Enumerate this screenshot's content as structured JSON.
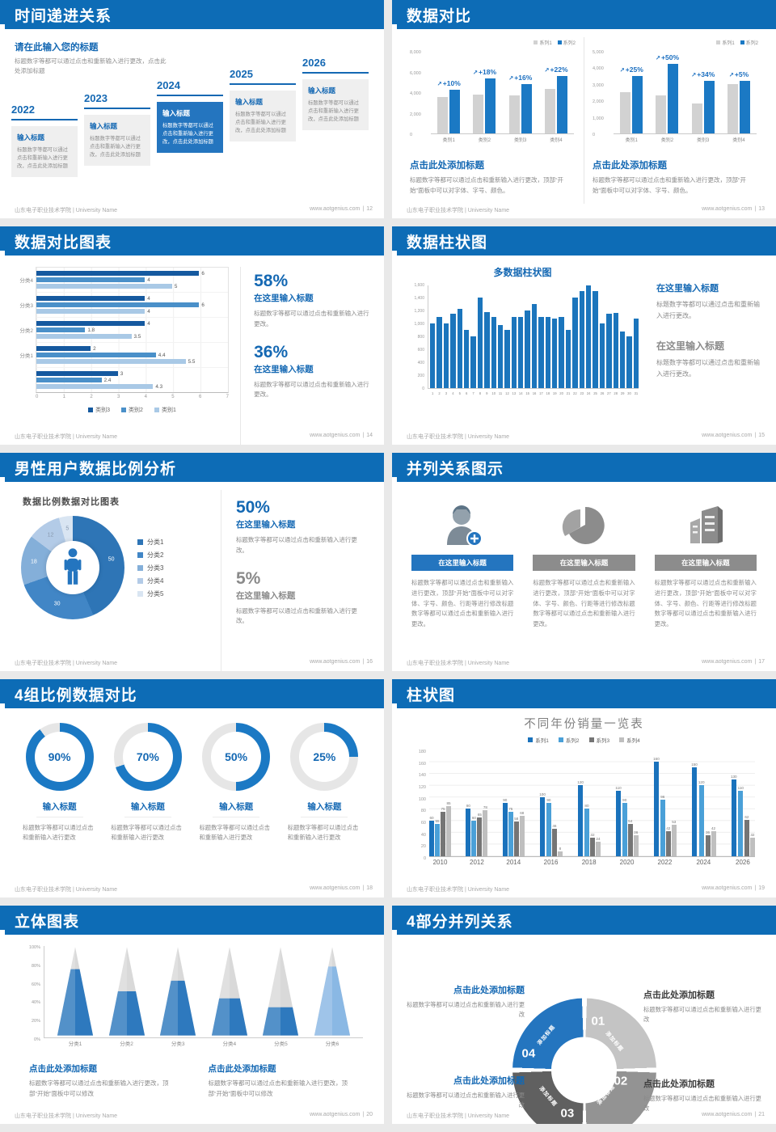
{
  "footer": {
    "left": "山东电子职业技术学院 | University Name",
    "site": "www.aotgenius.com"
  },
  "accent_color": "#1468b3",
  "header_color": "#0d6cb6",
  "slides": [
    {
      "page": "12",
      "title": "时间递进关系",
      "intro_title": "请在此输入您的标题",
      "intro_body": "标题数字等都可以通过点击和重新输入进行更改，点击此处添加标题",
      "items": [
        {
          "year": "2022",
          "heading": "输入标题",
          "body": "标题数字等都可以通过点击和重新输入进行更改，点击此处添加标题"
        },
        {
          "year": "2023",
          "heading": "输入标题",
          "body": "标题数字等都可以通过点击和重新输入进行更改，点击此处添加标题"
        },
        {
          "year": "2024",
          "heading": "输入标题",
          "body": "标题数字等都可以通过点击和重新输入进行更改，点击此处添加标题"
        },
        {
          "year": "2025",
          "heading": "输入标题",
          "body": "标题数字等都可以通过点击和重新输入进行更改，点击此处添加标题"
        },
        {
          "year": "2026",
          "heading": "输入标题",
          "body": "标题数字等都可以通过点击和重新输入进行更改，点击此处添加标题"
        }
      ]
    },
    {
      "page": "13",
      "title": "数据对比",
      "caption_title": "点击此处添加标题",
      "caption_body": "标题数字等都可以通过点击和重新输入进行更改，顶部“开始”面板中可以对字体、字号、颜色。"
    },
    {
      "page": "14",
      "title": "数据对比图表",
      "stats": [
        {
          "pct": "58%",
          "heading": "在这里输入标题",
          "body": "标题数字等都可以通过点击和重新输入进行更改。"
        },
        {
          "pct": "36%",
          "heading": "在这里输入标题",
          "body": "标题数字等都可以通过点击和重新输入进行更改。"
        }
      ]
    },
    {
      "page": "15",
      "title": "数据柱状图",
      "blocks": [
        {
          "heading": "在这里输入标题",
          "body": "标题数字等都可以通过点击和重新输入进行更改。"
        },
        {
          "heading": "在这里输入标题",
          "body": "标题数字等都可以通过点击和重新输入进行更改。"
        }
      ]
    },
    {
      "page": "16",
      "title": "男性用户数据比例分析",
      "stats": [
        {
          "pct": "50%",
          "heading": "在这里输入标题",
          "body": "标题数字等都可以通过点击和重新输入进行更改。"
        },
        {
          "pct": "5%",
          "heading": "在这里输入标题",
          "body": "标题数字等都可以通过点击和重新输入进行更改。"
        }
      ]
    },
    {
      "page": "17",
      "title": "并列关系图示",
      "cards": [
        {
          "icon": "user-plus-icon",
          "heading": "在这里输入标题"
        },
        {
          "icon": "pie-3d-icon",
          "heading": "在这里输入标题"
        },
        {
          "icon": "building-icon",
          "heading": "在这里输入标题"
        }
      ],
      "card_body": "标题数字等都可以通过点击和重新输入进行更改，顶部“开始”面板中可以对字体、字号、颜色、行距等进行修改标题数字等都可以通过点击和重新输入进行更改。"
    },
    {
      "page": "18",
      "title": "4组比例数据对比",
      "items": [
        {
          "heading": "输入标题",
          "body": "标题数字等都可以通过点击和重新输入进行更改"
        },
        {
          "heading": "输入标题",
          "body": "标题数字等都可以通过点击和重新输入进行更改"
        },
        {
          "heading": "输入标题",
          "body": "标题数字等都可以通过点击和重新输入进行更改"
        },
        {
          "heading": "输入标题",
          "body": "标题数字等都可以通过点击和重新输入进行更改"
        }
      ]
    },
    {
      "page": "19",
      "title": "柱状图"
    },
    {
      "page": "20",
      "title": "立体图表",
      "blocks": [
        {
          "heading": "点击此处添加标题",
          "body": "标题数字等都可以通过点击和重新输入进行更改，顶部“开始”面板中可以修改"
        },
        {
          "heading": "点击此处添加标题",
          "body": "标题数字等都可以通过点击和重新输入进行更改，顶部“开始”面板中可以修改"
        }
      ]
    },
    {
      "page": "21",
      "title": "4部分并列关系",
      "blocks": [
        {
          "heading": "点击此处添加标题",
          "body": "标题数字等都可以通过点击和重新输入进行更改"
        },
        {
          "heading": "点击此处添加标题",
          "body": "标题数字等都可以通过点击和重新输入进行更改"
        },
        {
          "heading": "点击此处添加标题",
          "body": "标题数字等都可以通过点击和重新输入进行更改"
        },
        {
          "heading": "点击此处添加标题",
          "body": "标题数字等都可以通过点击和重新输入进行更改"
        }
      ]
    }
  ],
  "chart_data": [
    {
      "type": "bar",
      "categories": [
        "类别1",
        "类别2",
        "类别3",
        "类别4"
      ],
      "series": [
        {
          "name": "系列1",
          "values": [
            3500,
            3800,
            3700,
            4300
          ]
        },
        {
          "name": "系列2",
          "values": [
            4200,
            5300,
            4800,
            5600
          ]
        }
      ],
      "colors": [
        "#d2d2d2",
        "#1b79c4"
      ],
      "annotations": [
        "+10%",
        "+18%",
        "+16%",
        "+22%"
      ],
      "ylim": [
        0,
        8000
      ],
      "ytick_step": 2000,
      "legend_position": "top-right"
    },
    {
      "type": "bar",
      "categories": [
        "类别1",
        "类别2",
        "类别3",
        "类别4"
      ],
      "series": [
        {
          "name": "系列1",
          "values": [
            2500,
            2300,
            1800,
            3000
          ]
        },
        {
          "name": "系列2",
          "values": [
            3500,
            4200,
            3200,
            3200
          ]
        }
      ],
      "colors": [
        "#d2d2d2",
        "#1b79c4"
      ],
      "annotations": [
        "+25%",
        "+50%",
        "+34%",
        "+5%"
      ],
      "ylim": [
        0,
        5000
      ],
      "ytick_step": 1000,
      "legend_position": "top-right"
    },
    {
      "type": "bar-horizontal",
      "groups": [
        "分类4",
        "分类3",
        "分类2",
        "分类1",
        ""
      ],
      "series": [
        {
          "name": "类别3",
          "values": [
            6,
            4,
            4,
            2,
            3
          ]
        },
        {
          "name": "类别2",
          "values": [
            4,
            6,
            1.8,
            4.4,
            2.4
          ]
        },
        {
          "name": "类别1",
          "values": [
            5,
            4,
            3.5,
            5.5,
            4.3
          ]
        }
      ],
      "colors": [
        "#15599f",
        "#4a90c9",
        "#a9c9e6"
      ],
      "xlim": [
        0,
        7
      ],
      "xticks": [
        0,
        1,
        2,
        3,
        4,
        5,
        6,
        7
      ],
      "legend_position": "bottom"
    },
    {
      "type": "bar",
      "title": "多数据柱状图",
      "x": [
        1,
        2,
        3,
        4,
        5,
        6,
        7,
        8,
        9,
        10,
        11,
        12,
        13,
        14,
        15,
        16,
        17,
        18,
        19,
        20,
        21,
        22,
        23,
        24,
        25,
        26,
        27,
        28,
        29,
        30,
        31
      ],
      "values": [
        1000,
        1100,
        1000,
        1150,
        1220,
        900,
        800,
        1400,
        1180,
        1100,
        980,
        900,
        1100,
        1100,
        1200,
        1300,
        1100,
        1100,
        1080,
        1100,
        900,
        1400,
        1500,
        1650,
        1500,
        1000,
        1150,
        1160,
        870,
        800,
        1070
      ],
      "color": "#1b75bc",
      "ylim": [
        0,
        1600
      ],
      "ytick_step": 200
    },
    {
      "type": "pie",
      "title": "数据比例数据对比图表",
      "labels": [
        "分类1",
        "分类2",
        "分类3",
        "分类4",
        "分类5"
      ],
      "values": [
        50,
        30,
        18,
        12,
        5
      ],
      "colors": [
        "#2e75b6",
        "#4186c6",
        "#84afd9",
        "#b3cbe7",
        "#d9e5f2"
      ]
    },
    {
      "type": "gauge",
      "values": [
        90,
        70,
        50,
        25
      ],
      "color": "#1b79c4",
      "track_color": "#e6e6e6"
    },
    {
      "type": "bar",
      "title": "不同年份销量一览表",
      "categories": [
        "2010",
        "2012",
        "2014",
        "2016",
        "2018",
        "2020",
        "2022",
        "2024",
        "2026"
      ],
      "series": [
        {
          "name": "系列1",
          "values": [
            60,
            80,
            90,
            100,
            120,
            110,
            160,
            150,
            130
          ]
        },
        {
          "name": "系列2",
          "values": [
            55,
            60,
            75,
            90,
            80,
            90,
            96,
            120,
            110
          ]
        },
        {
          "name": "系列3",
          "values": [
            75,
            65,
            58,
            46,
            32,
            54,
            42,
            36,
            62
          ]
        },
        {
          "name": "系列4",
          "values": [
            85,
            78,
            68,
            8,
            24,
            36,
            53,
            42,
            32
          ]
        }
      ],
      "colors": [
        "#1a72bc",
        "#4aa0d8",
        "#757575",
        "#bfbfbf"
      ],
      "ylim": [
        0,
        180
      ],
      "ytick_step": 20,
      "legend_position": "top"
    },
    {
      "type": "cone",
      "categories": [
        "分类1",
        "分类2",
        "分类3",
        "分类4",
        "分类5",
        "分类6"
      ],
      "values_pct": [
        75,
        50,
        62,
        42,
        32,
        78
      ],
      "yticks": [
        "0%",
        "20%",
        "40%",
        "60%",
        "80%",
        "100%"
      ],
      "cone_color": "#2e79be",
      "cone_color_light": "#8ab8e4",
      "cone_gray": "#d9d9d9",
      "light_index": 5
    },
    {
      "type": "ring",
      "segments": [
        {
          "num": "01",
          "label": "添加标题",
          "color": "#c4c4c4"
        },
        {
          "num": "02",
          "label": "添加标题",
          "color": "#939393"
        },
        {
          "num": "03",
          "label": "添加标题",
          "color": "#606060"
        },
        {
          "num": "04",
          "label": "添加标题",
          "color": "#2475bf"
        }
      ]
    }
  ]
}
